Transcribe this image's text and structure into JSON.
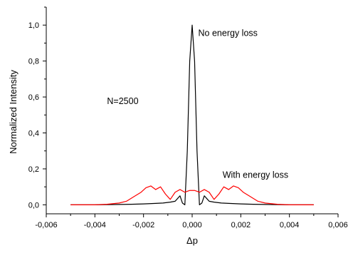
{
  "chart_data": {
    "type": "line",
    "xlabel": "Δp",
    "ylabel": "Normalized Intensity",
    "xlim": [
      -0.006,
      0.006
    ],
    "ylim": [
      -0.05,
      1.1
    ],
    "x_ticks": [
      {
        "value": -0.006,
        "label": "-0,006"
      },
      {
        "value": -0.004,
        "label": "-0,004"
      },
      {
        "value": -0.002,
        "label": "-0,002"
      },
      {
        "value": 0.0,
        "label": "0,000"
      },
      {
        "value": 0.002,
        "label": "0,002"
      },
      {
        "value": 0.004,
        "label": "0,004"
      },
      {
        "value": 0.006,
        "label": "0,006"
      }
    ],
    "y_ticks": [
      {
        "value": 0.0,
        "label": "0,0"
      },
      {
        "value": 0.2,
        "label": "0,2"
      },
      {
        "value": 0.4,
        "label": "0,4"
      },
      {
        "value": 0.6,
        "label": "0,6"
      },
      {
        "value": 0.8,
        "label": "0,8"
      },
      {
        "value": 1.0,
        "label": "1,0"
      }
    ],
    "grid": false,
    "series": [
      {
        "name": "No energy loss",
        "color": "#000000",
        "x": [
          -0.005,
          -0.004,
          -0.003,
          -0.0025,
          -0.002,
          -0.0015,
          -0.0012,
          -0.0009,
          -0.0007,
          -0.0006,
          -0.0005,
          -0.0004,
          -0.0003,
          -0.0002,
          -0.0001,
          0.0,
          0.0001,
          0.0002,
          0.0003,
          0.0004,
          0.0005,
          0.0006,
          0.0007,
          0.0009,
          0.0012,
          0.0015,
          0.002,
          0.0025,
          0.003,
          0.004,
          0.005
        ],
        "y": [
          0.0,
          0.0,
          0.002,
          0.003,
          0.005,
          0.008,
          0.01,
          0.015,
          0.02,
          0.035,
          0.05,
          0.01,
          0.0,
          0.3,
          0.8,
          1.0,
          0.8,
          0.3,
          0.0,
          0.01,
          0.05,
          0.035,
          0.02,
          0.015,
          0.01,
          0.008,
          0.005,
          0.003,
          0.002,
          0.0,
          0.0
        ]
      },
      {
        "name": "With energy loss",
        "color": "#ff0000",
        "x": [
          -0.005,
          -0.004,
          -0.0035,
          -0.003,
          -0.0027,
          -0.0024,
          -0.0021,
          -0.0019,
          -0.0017,
          -0.0015,
          -0.0013,
          -0.0011,
          -0.0009,
          -0.0007,
          -0.0005,
          -0.0003,
          -0.0001,
          0.0001,
          0.0003,
          0.0005,
          0.0007,
          0.0009,
          0.0011,
          0.0013,
          0.0015,
          0.0017,
          0.0019,
          0.0021,
          0.0024,
          0.0027,
          0.003,
          0.0035,
          0.004,
          0.005
        ],
        "y": [
          0.0,
          0.0,
          0.003,
          0.01,
          0.02,
          0.045,
          0.07,
          0.095,
          0.105,
          0.085,
          0.1,
          0.06,
          0.03,
          0.07,
          0.085,
          0.07,
          0.08,
          0.08,
          0.07,
          0.085,
          0.07,
          0.03,
          0.06,
          0.1,
          0.085,
          0.105,
          0.095,
          0.07,
          0.045,
          0.02,
          0.01,
          0.003,
          0.0,
          0.0
        ]
      }
    ],
    "annotations": [
      {
        "text": "No energy loss",
        "x": 0.00025,
        "y": 0.94
      },
      {
        "text": "With energy loss",
        "x": 0.00125,
        "y": 0.15
      },
      {
        "text": "N=2500",
        "x": -0.0035,
        "y": 0.56
      }
    ]
  }
}
